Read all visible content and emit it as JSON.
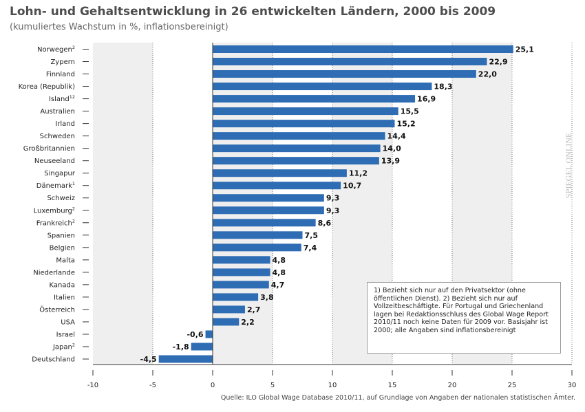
{
  "header": {
    "title": "Lohn- und Gehaltsentwicklung in 26 entwickelten Ländern, 2000 bis 2009",
    "subtitle": "(kumuliertes Wachstum in %, inflationsbereinigt)"
  },
  "chart_data": {
    "type": "bar",
    "orientation": "horizontal",
    "title": "Lohn- und Gehaltsentwicklung in 26 entwickelten Ländern, 2000 bis 2009",
    "subtitle": "(kumuliertes Wachstum in %, inflationsbereinigt)",
    "xlabel": "",
    "ylabel": "",
    "xlim": [
      -10,
      30
    ],
    "xticks": [
      -10,
      -5,
      0,
      5,
      10,
      15,
      20,
      25,
      30
    ],
    "xtick_labels": [
      "-10",
      "-5",
      "0",
      "5",
      "10",
      "15",
      "20",
      "25",
      "30"
    ],
    "grid": true,
    "categories": [
      {
        "name": "Norwegen",
        "sup": "2"
      },
      {
        "name": "Zypern",
        "sup": ""
      },
      {
        "name": "Finnland",
        "sup": ""
      },
      {
        "name": "Korea (Republik)",
        "sup": ""
      },
      {
        "name": "Island",
        "sup": "12"
      },
      {
        "name": "Australien",
        "sup": ""
      },
      {
        "name": "Irland",
        "sup": ""
      },
      {
        "name": "Schweden",
        "sup": ""
      },
      {
        "name": "Großbritannien",
        "sup": ""
      },
      {
        "name": "Neuseeland",
        "sup": ""
      },
      {
        "name": "Singapur",
        "sup": ""
      },
      {
        "name": "Dänemark",
        "sup": "1"
      },
      {
        "name": "Schweiz",
        "sup": ""
      },
      {
        "name": "Luxemburg",
        "sup": "2"
      },
      {
        "name": "Frankreich",
        "sup": "2"
      },
      {
        "name": "Spanien",
        "sup": ""
      },
      {
        "name": "Belgien",
        "sup": ""
      },
      {
        "name": "Malta",
        "sup": ""
      },
      {
        "name": "Niederlande",
        "sup": ""
      },
      {
        "name": "Kanada",
        "sup": ""
      },
      {
        "name": "Italien",
        "sup": ""
      },
      {
        "name": "Österreich",
        "sup": ""
      },
      {
        "name": "USA",
        "sup": ""
      },
      {
        "name": "Israel",
        "sup": ""
      },
      {
        "name": "Japan",
        "sup": "2"
      },
      {
        "name": "Deutschland",
        "sup": ""
      }
    ],
    "values": [
      25.1,
      22.9,
      22.0,
      18.3,
      16.9,
      15.5,
      15.2,
      14.4,
      14.0,
      13.9,
      11.2,
      10.7,
      9.3,
      9.3,
      8.6,
      7.5,
      7.4,
      4.8,
      4.8,
      4.7,
      3.8,
      2.7,
      2.2,
      -0.6,
      -1.8,
      -4.5
    ],
    "value_labels": [
      "25,1",
      "22,9",
      "22,0",
      "18,3",
      "16,9",
      "15,5",
      "15,2",
      "14,4",
      "14,0",
      "13,9",
      "11,2",
      "10,7",
      "9,3",
      "9,3",
      "8,6",
      "7,5",
      "7,4",
      "4,8",
      "4,8",
      "4,7",
      "3,8",
      "2,7",
      "2,2",
      "-0,6",
      "-1,8",
      "-4,5"
    ],
    "colors": {
      "bar": "#2e6db4",
      "band": "#efefef",
      "grid": "#777777",
      "axis": "#333333",
      "text": "#222222"
    }
  },
  "footnote": "1) Bezieht sich nur auf den Privatsektor (ohne öffentlichen Dienst). 2) Bezieht sich nur auf Vollzeitbeschäftigte. Für Portugal und Griechenland lagen bei Redaktionsschluss des Global Wage Report 2010/11 noch keine Daten für 2009 vor. Basisjahr ist 2000; alle Angaben sind inflationsbereinigt",
  "source": "Quelle: ILO Global Wage Database 2010/11, auf Grundlage von Angaben der nationalen statistischen Ämter.",
  "brand": {
    "logo_text": "SPIEGEL ONLINE",
    "color": "#bdbdbd"
  }
}
